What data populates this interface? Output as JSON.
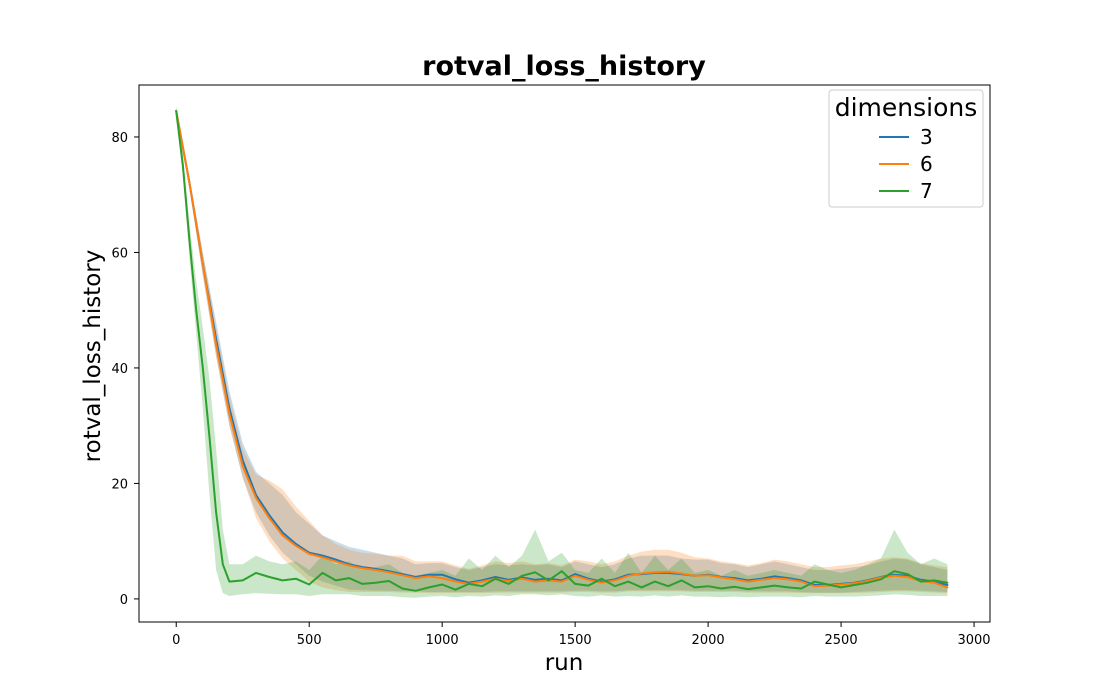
{
  "chart_data": {
    "type": "line",
    "title": "rotval_loss_history",
    "xlabel": "run",
    "ylabel": "rotval_loss_history",
    "xlim": [
      -140,
      3060
    ],
    "ylim": [
      -4,
      89
    ],
    "x_ticks": [
      0,
      500,
      1000,
      1500,
      2000,
      2500,
      3000
    ],
    "x_tick_labels": [
      "0",
      "500",
      "1000",
      "1500",
      "2000",
      "2500",
      "3000"
    ],
    "y_ticks": [
      0,
      20,
      40,
      60,
      80
    ],
    "y_tick_labels": [
      "0",
      "20",
      "40",
      "60",
      "80"
    ],
    "grid": false,
    "legend": {
      "title": "dimensions",
      "placement": "top-right"
    },
    "series": [
      {
        "name": "3",
        "color": "#1f77b4",
        "x": [
          0,
          50,
          100,
          150,
          200,
          250,
          300,
          350,
          400,
          450,
          500,
          550,
          600,
          650,
          700,
          750,
          800,
          850,
          900,
          950,
          1000,
          1050,
          1100,
          1150,
          1200,
          1250,
          1300,
          1350,
          1400,
          1450,
          1500,
          1550,
          1600,
          1650,
          1700,
          1750,
          1800,
          1850,
          1900,
          1950,
          2000,
          2050,
          2100,
          2150,
          2200,
          2250,
          2300,
          2350,
          2400,
          2450,
          2500,
          2550,
          2600,
          2650,
          2700,
          2750,
          2800,
          2850,
          2900
        ],
        "y": [
          84.5,
          72,
          58,
          45,
          33,
          24,
          18,
          14.5,
          11.5,
          9.5,
          8,
          7.5,
          6.8,
          6,
          5.5,
          5.2,
          4.8,
          4.3,
          3.8,
          4.2,
          4.2,
          3.4,
          2.8,
          3.2,
          3.8,
          3.3,
          3.7,
          3.3,
          3.5,
          3.2,
          4.3,
          3.5,
          3.0,
          3.4,
          4.2,
          4.3,
          4.5,
          4.5,
          4.3,
          4.0,
          4.2,
          3.8,
          3.6,
          3.2,
          3.5,
          3.9,
          3.6,
          3.2,
          2.4,
          2.4,
          2.6,
          2.8,
          3.2,
          3.8,
          4.2,
          4.0,
          3.3,
          3.0,
          2.4
        ],
        "lower": [
          84,
          71,
          56,
          42,
          30,
          21,
          15,
          11,
          8,
          6,
          4,
          3,
          2.3,
          1.6,
          1.5,
          1.4,
          1.4,
          1.3,
          1.3,
          1.2,
          1.2,
          1.2,
          1.2,
          1.2,
          1.3,
          1.3,
          1.3,
          1.3,
          1.3,
          1.3,
          1.4,
          1.4,
          1.3,
          1.3,
          1.5,
          1.5,
          1.5,
          1.5,
          1.5,
          1.4,
          1.4,
          1.4,
          1.4,
          1.3,
          1.3,
          1.3,
          1.3,
          1.2,
          1.1,
          1.1,
          1.1,
          1.2,
          1.3,
          1.4,
          1.5,
          1.5,
          1.4,
          1.3,
          1.2
        ],
        "upper": [
          85,
          73,
          60,
          48,
          36,
          27,
          22,
          20,
          18,
          15,
          13,
          11,
          10,
          9,
          8.5,
          8,
          7.5,
          7,
          6,
          6.2,
          6.2,
          5.5,
          5.0,
          5.5,
          6.0,
          5.8,
          6.0,
          5.8,
          6.0,
          5.5,
          6.5,
          6.0,
          5.5,
          6.0,
          7.0,
          7.5,
          7.5,
          7.5,
          7.0,
          6.8,
          6.8,
          6.2,
          6.0,
          5.5,
          6.0,
          6.5,
          6.0,
          5.5,
          5.0,
          5.0,
          5.2,
          5.5,
          5.8,
          6.5,
          7.0,
          6.8,
          6.0,
          5.5,
          5.0
        ]
      },
      {
        "name": "6",
        "color": "#ff7f0e",
        "x": [
          0,
          50,
          100,
          150,
          200,
          250,
          300,
          350,
          400,
          450,
          500,
          550,
          600,
          650,
          700,
          750,
          800,
          850,
          900,
          950,
          1000,
          1050,
          1100,
          1150,
          1200,
          1250,
          1300,
          1350,
          1400,
          1450,
          1500,
          1550,
          1600,
          1650,
          1700,
          1750,
          1800,
          1850,
          1900,
          1950,
          2000,
          2050,
          2100,
          2150,
          2200,
          2250,
          2300,
          2350,
          2400,
          2450,
          2500,
          2550,
          2600,
          2650,
          2700,
          2750,
          2800,
          2850,
          2900
        ],
        "y": [
          84.5,
          72,
          58,
          44,
          32,
          23,
          17.5,
          14,
          11,
          9.2,
          7.8,
          7.2,
          6.5,
          5.8,
          5.3,
          5.0,
          4.6,
          4.1,
          3.6,
          3.9,
          3.6,
          3.0,
          2.6,
          3.0,
          3.5,
          3.1,
          3.5,
          3.0,
          3.2,
          3.0,
          4.0,
          3.3,
          2.8,
          3.2,
          4.0,
          4.4,
          4.6,
          4.7,
          4.4,
          4.0,
          4.1,
          3.7,
          3.4,
          3.0,
          3.3,
          3.6,
          3.4,
          3.0,
          2.2,
          2.3,
          2.5,
          2.7,
          3.1,
          3.7,
          4.0,
          3.8,
          3.1,
          2.8,
          2.0
        ],
        "lower": [
          84,
          71,
          56,
          42,
          30,
          21,
          14,
          10,
          7,
          5,
          3,
          2,
          1.5,
          1.2,
          1.2,
          1.2,
          1.2,
          1.1,
          1.1,
          1.0,
          1.0,
          1.0,
          1.0,
          1.0,
          1.1,
          1.1,
          1.1,
          1.1,
          1.1,
          1.1,
          1.2,
          1.2,
          1.1,
          1.1,
          1.3,
          1.3,
          1.3,
          1.3,
          1.3,
          1.2,
          1.2,
          1.2,
          1.2,
          1.1,
          1.1,
          1.1,
          1.1,
          1.0,
          1.0,
          1.0,
          1.0,
          1.0,
          1.1,
          1.2,
          1.3,
          1.3,
          1.2,
          1.1,
          1.0
        ],
        "upper": [
          85,
          73,
          60,
          47,
          35,
          26,
          21.5,
          20.5,
          19,
          16,
          13.5,
          11,
          9.5,
          8.5,
          8,
          7.8,
          7.5,
          7.5,
          6.5,
          6.5,
          6.5,
          5.8,
          5.2,
          5.8,
          6.5,
          6.2,
          6.5,
          6.0,
          6.2,
          5.8,
          6.8,
          6.5,
          6.0,
          6.5,
          7.5,
          8.2,
          8.5,
          8.5,
          8.0,
          7.2,
          7.0,
          6.5,
          6.2,
          5.8,
          6.2,
          6.8,
          6.5,
          6.0,
          5.5,
          5.5,
          5.8,
          6.0,
          6.5,
          7.0,
          7.2,
          7.0,
          6.2,
          5.8,
          5.5
        ]
      },
      {
        "name": "7",
        "color": "#2ca02c",
        "x": [
          0,
          25,
          50,
          75,
          100,
          125,
          150,
          175,
          200,
          250,
          300,
          350,
          400,
          450,
          500,
          550,
          600,
          650,
          700,
          750,
          800,
          850,
          900,
          950,
          1000,
          1050,
          1100,
          1150,
          1200,
          1250,
          1300,
          1350,
          1400,
          1450,
          1500,
          1550,
          1600,
          1650,
          1700,
          1750,
          1800,
          1850,
          1900,
          1950,
          2000,
          2050,
          2100,
          2150,
          2200,
          2250,
          2300,
          2350,
          2400,
          2450,
          2500,
          2550,
          2600,
          2650,
          2700,
          2750,
          2800,
          2850,
          2900
        ],
        "y": [
          84.5,
          75,
          62,
          50,
          40,
          28,
          15,
          6,
          3,
          3.2,
          4.5,
          3.8,
          3.2,
          3.5,
          2.5,
          4.5,
          3.2,
          3.6,
          2.6,
          2.8,
          3.1,
          1.8,
          1.4,
          2.0,
          2.5,
          1.6,
          2.6,
          2.2,
          3.5,
          2.6,
          4.0,
          4.6,
          3.2,
          4.8,
          2.6,
          2.3,
          3.5,
          2.2,
          3.0,
          2.0,
          3.0,
          2.2,
          3.2,
          2.0,
          2.2,
          1.8,
          2.1,
          1.7,
          2.0,
          2.3,
          2.0,
          1.8,
          3.0,
          2.5,
          2.0,
          2.4,
          2.8,
          3.4,
          4.8,
          4.3,
          3.0,
          3.2,
          2.8
        ],
        "lower": [
          84,
          73,
          59,
          46,
          33,
          18,
          5,
          1,
          0.5,
          0.8,
          1.0,
          0.9,
          0.8,
          0.8,
          0.5,
          0.8,
          0.8,
          0.8,
          0.5,
          0.5,
          0.5,
          0.3,
          0.2,
          0.4,
          0.5,
          0.3,
          0.5,
          0.4,
          0.6,
          0.5,
          0.8,
          0.8,
          0.6,
          0.8,
          0.5,
          0.4,
          0.6,
          0.4,
          0.5,
          0.4,
          0.6,
          0.4,
          0.6,
          0.4,
          0.4,
          0.3,
          0.4,
          0.3,
          0.4,
          0.4,
          0.4,
          0.3,
          0.5,
          0.4,
          0.4,
          0.4,
          0.5,
          0.6,
          0.8,
          0.7,
          0.5,
          0.5,
          0.5
        ],
        "upper": [
          85.5,
          77,
          65,
          55,
          47,
          38,
          26,
          12,
          6,
          6.0,
          7.5,
          6.5,
          6.0,
          6.5,
          5.0,
          7.5,
          6.0,
          6.5,
          5.0,
          5.5,
          6.0,
          4.5,
          4.0,
          4.5,
          5.0,
          4.0,
          7.0,
          5.0,
          7.5,
          5.5,
          7.5,
          12.0,
          6.5,
          8.0,
          5.0,
          4.5,
          7.0,
          4.5,
          8.0,
          4.5,
          7.5,
          5.0,
          7.0,
          4.5,
          5.0,
          4.0,
          5.0,
          4.0,
          4.5,
          5.0,
          4.5,
          4.0,
          6.0,
          5.0,
          4.5,
          5.0,
          6.0,
          7.0,
          12.0,
          8.0,
          6.0,
          7.0,
          6.0
        ]
      }
    ]
  }
}
